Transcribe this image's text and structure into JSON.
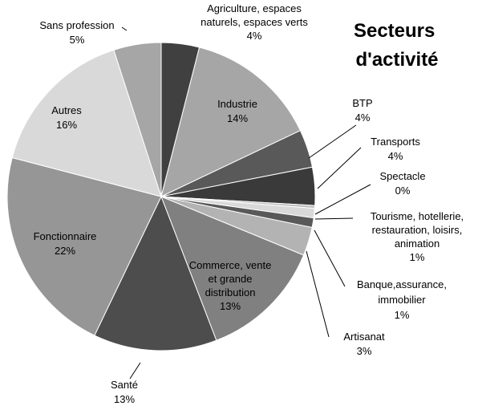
{
  "chart_data": {
    "type": "pie",
    "title_lines": [
      "Secteurs",
      "d'activité"
    ],
    "slices": [
      {
        "lines": [
          "Agriculture, espaces",
          "naturels, espaces verts",
          "4%"
        ],
        "value": 4,
        "color": "#404040"
      },
      {
        "lines": [
          "Industrie",
          "14%"
        ],
        "value": 14,
        "color": "#a6a6a6"
      },
      {
        "lines": [
          "BTP",
          "4%"
        ],
        "value": 4,
        "color": "#595959"
      },
      {
        "lines": [
          "Transports",
          "4%"
        ],
        "value": 4,
        "color": "#3a3a3a"
      },
      {
        "lines": [
          "Spectacle",
          "0%"
        ],
        "value": 0.3,
        "color": "#bfbfbf"
      },
      {
        "lines": [
          "Tourisme, hotellerie,",
          "restauration, loisirs,",
          "animation",
          "1%"
        ],
        "value": 1,
        "color": "#d9d9d9"
      },
      {
        "lines": [
          "Banque,assurance,",
          "immobilier",
          "1%"
        ],
        "value": 1,
        "color": "#595959"
      },
      {
        "lines": [
          "Artisanat",
          "3%"
        ],
        "value": 3,
        "color": "#b3b3b3"
      },
      {
        "lines": [
          "Commerce, vente",
          "et grande",
          "distribution",
          "13%"
        ],
        "value": 13,
        "color": "#808080"
      },
      {
        "lines": [
          "Santé",
          "13%"
        ],
        "value": 13,
        "color": "#4d4d4d"
      },
      {
        "lines": [
          "Fonctionnaire",
          "22%"
        ],
        "value": 22,
        "color": "#969696"
      },
      {
        "lines": [
          "Autres",
          "16%"
        ],
        "value": 16,
        "color": "#d9d9d9"
      },
      {
        "lines": [
          "Sans profession",
          "5%"
        ],
        "value": 5,
        "color": "#a6a6a6"
      }
    ]
  }
}
